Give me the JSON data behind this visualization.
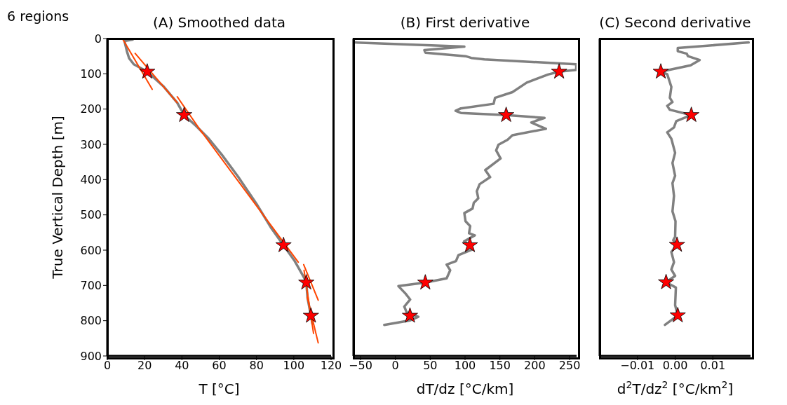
{
  "chart_data": [
    {
      "type": "line",
      "title": "(A) Smoothed data",
      "annotations": [
        "6 regions"
      ],
      "xlabel": "T [°C]",
      "ylabel": "True Vertical Depth [m]",
      "xlim": [
        0,
        120
      ],
      "xticks": [
        0,
        20,
        40,
        60,
        80,
        100,
        120
      ],
      "ylim": [
        900,
        0
      ],
      "yticks": [
        0,
        100,
        200,
        300,
        400,
        500,
        600,
        700,
        800,
        900
      ],
      "series": [
        {
          "type": "line",
          "color": "#808080",
          "x": [
            13.6,
            9.2,
            10.5,
            11.7,
            14.2,
            21.4,
            30,
            37.5,
            41.2,
            47.6,
            53.9,
            61.5,
            70.3,
            80.4,
            88,
            94.5,
            100.5,
            106.2,
            106.7,
            107.4,
            109.2,
            110
          ],
          "values": [
            3,
            7,
            36,
            56,
            73,
            94,
            135,
            182,
            217,
            248,
            281,
            330,
            393,
            472,
            538,
            586,
            631,
            684,
            692,
            736,
            786,
            809
          ]
        },
        {
          "type": "line",
          "color": "#ff4500",
          "x": [
            8.3,
            24.1
          ],
          "values": [
            2,
            144
          ]
        },
        {
          "type": "line",
          "color": "#ff4500",
          "x": [
            14.9,
            37.5
          ],
          "values": [
            42,
            182
          ]
        },
        {
          "type": "line",
          "color": "#ff4500",
          "x": [
            37.5,
            50.8
          ],
          "values": [
            165,
            267
          ]
        },
        {
          "type": "line",
          "color": "#ff4500",
          "x": [
            50.1,
            102.4
          ],
          "values": [
            261,
            634
          ]
        },
        {
          "type": "line",
          "color": "#ff4500",
          "x": [
            105.3,
            113.1
          ],
          "values": [
            641,
            742
          ]
        },
        {
          "type": "line",
          "color": "#ff4500",
          "x": [
            105.5,
            110.6
          ],
          "values": [
            657,
            836
          ]
        },
        {
          "type": "line",
          "color": "#ff4500",
          "x": [
            107.2,
            113.1
          ],
          "values": [
            733,
            863
          ]
        },
        {
          "type": "scatter",
          "color": "#ff0000",
          "marker": "star",
          "x": [
            21.4,
            41.2,
            94.5,
            106.7,
            109.2
          ],
          "values": [
            94,
            217,
            586,
            692,
            786
          ]
        }
      ]
    },
    {
      "type": "line",
      "title": "(B) First derivative",
      "xlabel": "dT/dz [°C/km]",
      "xlim": [
        -60,
        260
      ],
      "xticks": [
        {
          "value": -50,
          "label": "−50"
        },
        0,
        50,
        100,
        150,
        200,
        250
      ],
      "ylim": [
        900,
        0
      ],
      "yticks": [
        0,
        100,
        200,
        300,
        400,
        500,
        600,
        700,
        800,
        900
      ],
      "tick_labels": "x",
      "series": [
        {
          "type": "line",
          "color": "#808080",
          "x": [
            -58.8,
            99,
            41.6,
            43.2,
            100.7,
            109,
            127.7,
            259.5,
            259.5,
            235,
            219,
            188.5,
            168,
            143,
            141,
            94,
            86.5,
            94,
            159,
            214,
            195,
            216,
            168,
            161,
            148,
            144.6,
            151,
            129,
            136,
            120.9,
            116.9,
            119,
            112.5,
            110.8,
            99,
            100.7,
            107.4,
            105.7,
            114,
            98.6,
            107,
            110.8,
            90.5,
            87,
            73.6,
            78.7,
            73.6,
            43,
            4.4,
            14.5,
            21.3,
            12.8,
            16.2,
            33,
            21.3,
            -15.9
          ],
          "values": [
            11,
            23,
            33,
            40,
            50,
            55,
            59,
            73,
            89,
            94,
            102,
            125,
            152,
            168,
            185,
            198,
            205,
            211,
            217,
            225,
            238,
            256,
            274,
            287,
            301,
            317,
            340,
            373,
            393,
            413,
            433,
            453,
            466,
            482,
            495,
            518,
            532,
            552,
            558,
            575,
            586,
            598,
            614,
            631,
            641,
            657,
            680,
            692,
            702,
            723,
            740,
            760,
            776,
            789,
            799,
            812
          ]
        },
        {
          "type": "scatter",
          "color": "#ff0000",
          "marker": "star",
          "x": [
            235,
            159,
            107,
            43,
            21
          ],
          "values": [
            94,
            217,
            586,
            692,
            786
          ]
        }
      ]
    },
    {
      "type": "line",
      "title": "(C) Second derivative",
      "xlabel": "d$^{2}$T/dz$^{2}$ [°C/km$^{2}$]",
      "xlim": [
        -0.02,
        0.02
      ],
      "xticks": [
        {
          "value": -0.01,
          "label": "−0.01"
        },
        {
          "value": 0,
          "label": "0.00"
        },
        0.01
      ],
      "ylim": [
        900,
        0
      ],
      "yticks": [
        0,
        100,
        200,
        300,
        400,
        500,
        600,
        700,
        800,
        900
      ],
      "tick_labels": "x",
      "series": [
        {
          "type": "line",
          "color": "#808080",
          "x": [
            0.0195,
            0.0007,
            0.0007,
            0.0031,
            0.0034,
            0.0065,
            0.0041,
            -0.0038,
            -0.0021,
            -0.001,
            -0.0014,
            -0.0007,
            -0.0021,
            -0.0014,
            0.0043,
            0.0003,
            -0.0003,
            -0.0021,
            -0.001,
            0,
            -0.0007,
            0,
            -0.0007,
            -0.0003,
            -0.0007,
            0.0001,
            0,
            -0.0005,
            0.0005,
            -0.001,
            -0.0003,
            -0.001,
            0,
            -0.0024,
            0.0002,
            0,
            0.0007,
            -0.0027
          ],
          "values": [
            11,
            27,
            36,
            43,
            50,
            61,
            76,
            94,
            101,
            137,
            168,
            180,
            191,
            202,
            217,
            234,
            252,
            266,
            284,
            324,
            353,
            389,
            410,
            446,
            490,
            518,
            562,
            572,
            585,
            605,
            634,
            655,
            673,
            691,
            706,
            756,
            785,
            812
          ]
        },
        {
          "type": "scatter",
          "color": "#ff0000",
          "marker": "star",
          "x": [
            -0.0038,
            0.0043,
            0.0005,
            -0.0024,
            0.0007
          ],
          "values": [
            94,
            217,
            585,
            691,
            785
          ]
        }
      ]
    }
  ]
}
